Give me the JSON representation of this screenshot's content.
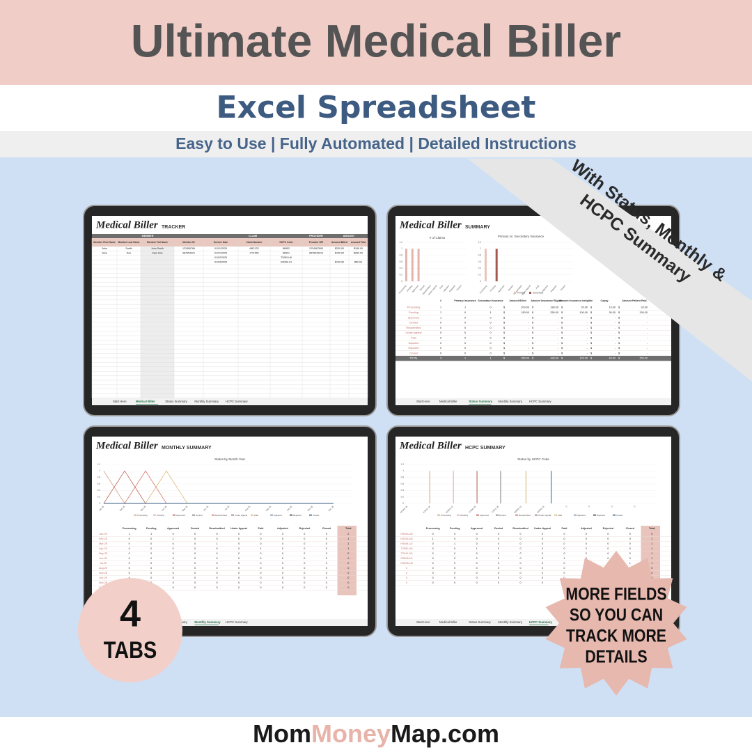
{
  "header": {
    "title": "Ultimate Medical Biller",
    "subtitle": "Excel Spreadsheet",
    "tagline": "Easy to Use | Fully Automated | Detailed Instructions"
  },
  "ribbon": {
    "lines": [
      "With Status, Monthly &",
      "HCPC Summary"
    ]
  },
  "tabs": [
    "Start Here",
    "Medical Biller",
    "Status Summary",
    "Monthly Summary",
    "HCPC Summary"
  ],
  "chart_ticks": [
    0,
    0.2,
    0.4,
    0.6,
    0.8,
    1,
    1.2
  ],
  "screens": [
    {
      "brand": "Medical Biller",
      "name": "TRACKER",
      "active_tab": 1,
      "groups": [
        "MEMBER",
        "CLAIM",
        "PROVIDER",
        "AMOUNT"
      ],
      "columns": [
        "Member First Name",
        "Member Last Name",
        "Member Full Name",
        "Member ID",
        "Service Date",
        "Claim Number",
        "HCPC Code",
        "Provider NPI",
        "Amount Billed",
        "Amount Paid"
      ],
      "rows": [
        [
          "John",
          "Smith",
          "John Smith",
          "123456789",
          "01/01/2025",
          "ABC123",
          "86552",
          "1234567890",
          "$200.00",
          "$180.00"
        ],
        [
          "Jane",
          "Doe",
          "Jane Doe",
          "987654321",
          "01/01/2025",
          "XYZ456",
          "86931",
          "9876543210",
          "$150.00",
          "$250.00"
        ],
        [
          null,
          null,
          null,
          null,
          "01/02/2025",
          null,
          "T2050-U6",
          null,
          null,
          null
        ],
        [
          null,
          null,
          null,
          null,
          "01/03/2025",
          null,
          "G9008-U1",
          null,
          "$100.00",
          "$50.00"
        ]
      ]
    },
    {
      "brand": "Medical Biller",
      "name": "SUMMARY",
      "active_tab": 2,
      "charts": [
        "# of Claims",
        "Primary vs. Secondary Insurance"
      ],
      "legend": [
        "Primary",
        "Secondary"
      ],
      "currency": "$",
      "columns": [
        "#",
        "Primary Insurance",
        "Secondary Insurance",
        "Amount Billed",
        "Amount Insurance Eligible",
        "Amount Insurance Ineligible",
        "Copay",
        "Amount Patient Paid"
      ],
      "rows": [
        [
          "Processing",
          1,
          1,
          0,
          "200.00",
          "180.00",
          "20.00",
          "10.00",
          "20.00"
        ],
        [
          "Pending",
          1,
          0,
          1,
          "150.00",
          "250.00",
          "100.00",
          "30.00",
          "130.00"
        ],
        [
          "Approved",
          1,
          0,
          0,
          "-",
          "-",
          "-",
          "-",
          "-"
        ],
        [
          "Denied",
          0,
          0,
          0,
          "-",
          "-",
          "-",
          "-",
          "-"
        ],
        [
          "Resubmitted",
          0,
          0,
          0,
          "-",
          "-",
          "-",
          "-",
          "-"
        ],
        [
          "Under Appeal",
          0,
          0,
          0,
          "-",
          "-",
          "-",
          "-",
          "-"
        ],
        [
          "Paid",
          0,
          0,
          0,
          "-",
          "-",
          "-",
          "-",
          "-"
        ],
        [
          "Adjusted",
          0,
          0,
          0,
          "-",
          "-",
          "-",
          "-",
          "-"
        ],
        [
          "Rejected",
          0,
          0,
          0,
          "-",
          "-",
          "-",
          "-",
          "-"
        ],
        [
          "Closed",
          0,
          0,
          0,
          "-",
          "-",
          "-",
          "-",
          "-"
        ],
        [
          "TOTAL",
          3,
          1,
          1,
          "350.00",
          "430.00",
          "120.00",
          "40.00",
          "150.00"
        ]
      ]
    },
    {
      "brand": "Medical Biller",
      "name": "MONTHLY SUMMARY",
      "active_tab": 3,
      "chart_title": "Status by Month-Year",
      "series_colors": [
        "#c9a27a",
        "#e0a49a",
        "#b55a4e",
        "#7a7a7a",
        "#d46a5a",
        "#9c6b8a",
        "#d8b26a",
        "#6c8fb5",
        "#3a3a3a",
        "#2f5d8a"
      ],
      "columns": [
        "Processing",
        "Pending",
        "Approved",
        "Denied",
        "Resubmitted",
        "Under Appeal",
        "Paid",
        "Adjusted",
        "Rejected",
        "Closed",
        "Total"
      ],
      "rows": [
        [
          "Jan-25",
          1,
          1,
          0,
          0,
          0,
          0,
          0,
          0,
          0,
          0,
          2
        ],
        [
          "Feb-25",
          0,
          0,
          1,
          0,
          0,
          0,
          0,
          0,
          0,
          0,
          1
        ],
        [
          "Mar-25",
          0,
          0,
          0,
          0,
          1,
          0,
          0,
          0,
          0,
          0,
          1
        ],
        [
          "Apr-25",
          0,
          0,
          0,
          0,
          0,
          0,
          1,
          0,
          0,
          0,
          1
        ],
        [
          "May-25",
          0,
          0,
          0,
          0,
          0,
          0,
          0,
          0,
          0,
          0,
          0
        ],
        [
          "Jun-25",
          0,
          0,
          0,
          0,
          0,
          0,
          0,
          0,
          0,
          0,
          0
        ],
        [
          "Jul-25",
          0,
          0,
          0,
          0,
          0,
          0,
          0,
          0,
          0,
          0,
          0
        ],
        [
          "Aug-25",
          0,
          0,
          0,
          0,
          0,
          0,
          0,
          0,
          0,
          0,
          0
        ],
        [
          "Sep-25",
          0,
          0,
          0,
          0,
          0,
          0,
          0,
          0,
          0,
          0,
          0
        ],
        [
          "Oct-25",
          0,
          0,
          0,
          0,
          0,
          0,
          0,
          0,
          0,
          0,
          0
        ],
        [
          "Nov-25",
          0,
          0,
          0,
          0,
          0,
          0,
          0,
          0,
          0,
          0,
          0
        ],
        [
          "Dec-25",
          0,
          0,
          0,
          0,
          0,
          0,
          0,
          0,
          0,
          0,
          0
        ]
      ]
    },
    {
      "brand": "Medical Biller",
      "name": "HCPC SUMMARY",
      "active_tab": 4,
      "chart_title": "Status by HCPC Code",
      "series_colors": [
        "#c9a27a",
        "#e0a49a",
        "#b55a4e",
        "#7a7a7a",
        "#d46a5a",
        "#9c6b8a",
        "#d8b26a",
        "#6c8fb5",
        "#3a3a3a",
        "#2f5d8a"
      ],
      "columns": [
        "Processing",
        "Pending",
        "Approved",
        "Denied",
        "Resubmitted",
        "Under Appeal",
        "Paid",
        "Adjusted",
        "Rejected",
        "Closed",
        "Total"
      ],
      "rows": [
        [
          "H0043-U6",
          0,
          0,
          0,
          0,
          0,
          0,
          0,
          0,
          0,
          0,
          0
        ],
        [
          "H2016-U6",
          1,
          0,
          0,
          0,
          0,
          0,
          0,
          0,
          0,
          0,
          1
        ],
        [
          "H0044-U2",
          0,
          1,
          0,
          0,
          0,
          0,
          0,
          0,
          0,
          0,
          1
        ],
        [
          "T2050-U6",
          0,
          0,
          1,
          0,
          0,
          0,
          0,
          0,
          0,
          0,
          1
        ],
        [
          "T2041-U6",
          0,
          0,
          0,
          1,
          0,
          0,
          0,
          0,
          0,
          0,
          1
        ],
        [
          "G9008-U1",
          0,
          0,
          0,
          0,
          0,
          0,
          1,
          0,
          0,
          0,
          1
        ],
        [
          "G9008-U8",
          0,
          0,
          0,
          0,
          0,
          0,
          0,
          0,
          0,
          1,
          1
        ],
        [
          "0",
          0,
          0,
          0,
          0,
          0,
          0,
          0,
          0,
          0,
          0,
          0
        ],
        [
          "0",
          0,
          0,
          0,
          0,
          0,
          0,
          0,
          0,
          0,
          0,
          0
        ],
        [
          "0",
          0,
          0,
          0,
          0,
          0,
          0,
          0,
          0,
          0,
          0,
          0
        ],
        [
          "0",
          0,
          0,
          0,
          0,
          0,
          0,
          0,
          0,
          0,
          0,
          0
        ]
      ]
    }
  ],
  "badge": {
    "number": "4",
    "label": "TABS"
  },
  "burst": {
    "lines": [
      "MORE FIELDS",
      "SO YOU CAN",
      "TRACK MORE",
      "DETAILS"
    ]
  },
  "footer": {
    "parts": [
      "Mom",
      "Money",
      "Map.com"
    ]
  }
}
